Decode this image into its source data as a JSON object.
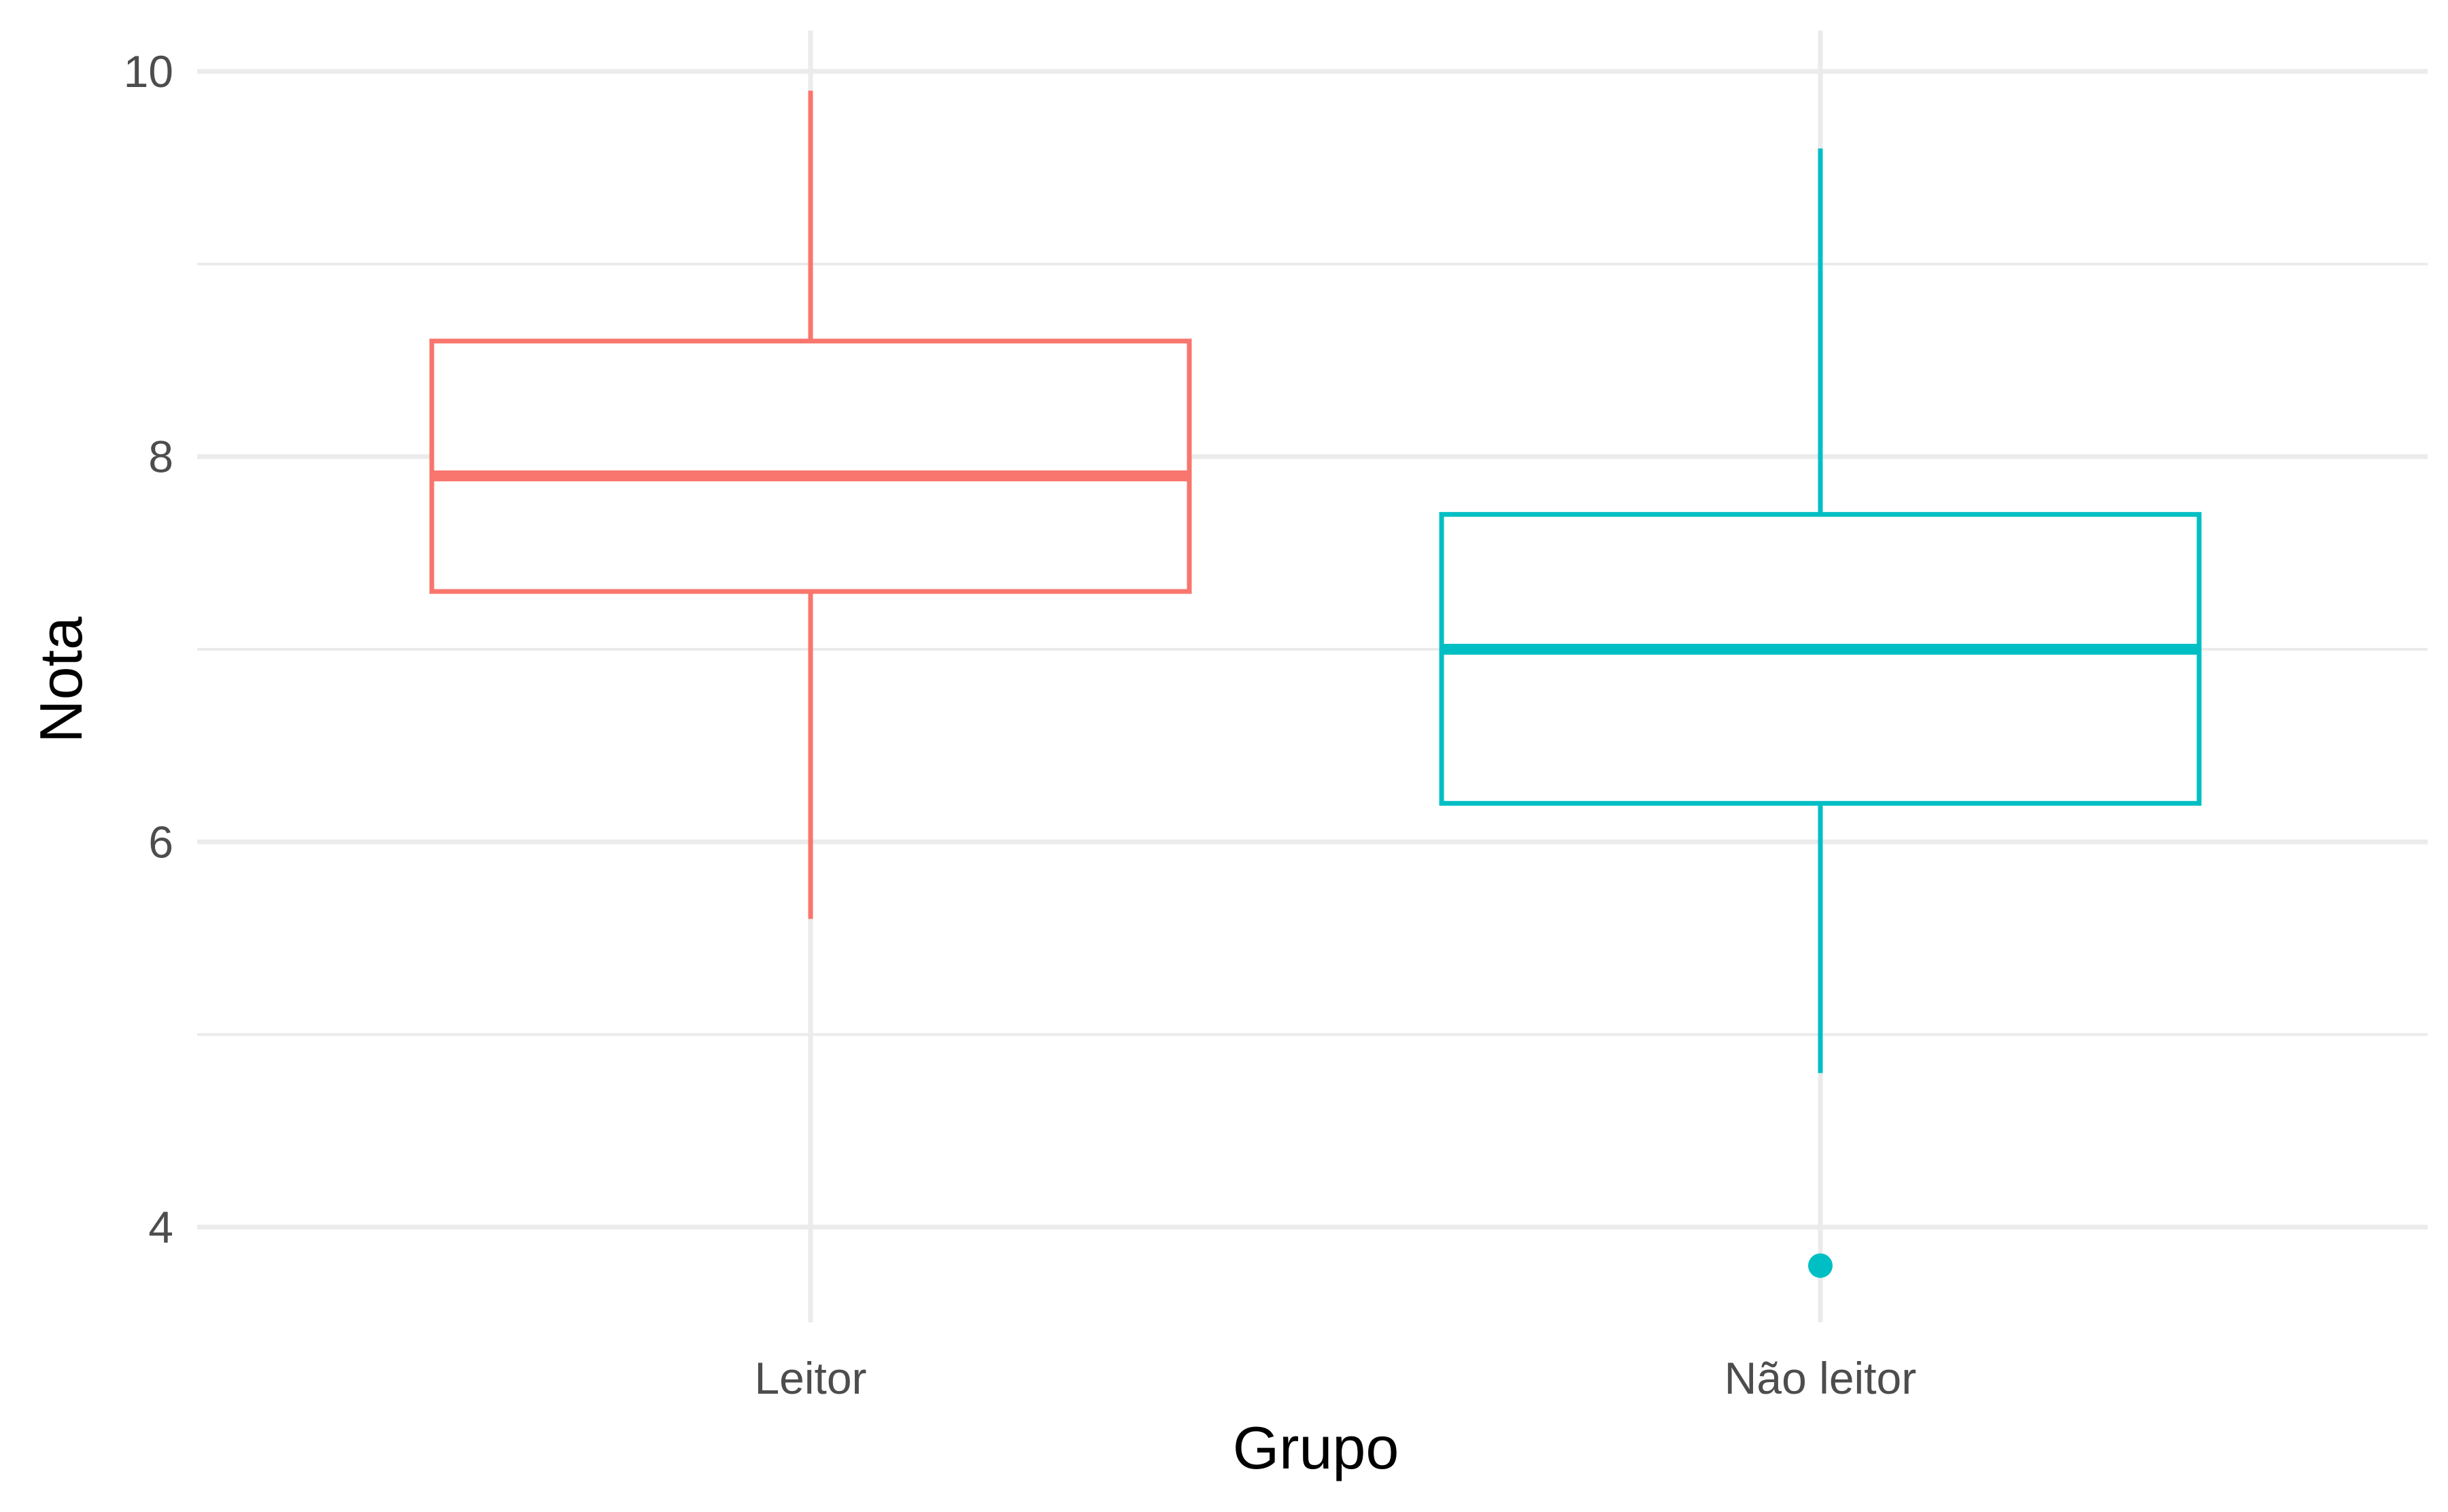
{
  "chart_data": {
    "type": "boxplot",
    "title": "",
    "xlabel": "Grupo",
    "ylabel": "Nota",
    "ylim": [
      3.5,
      10.2
    ],
    "y_major_ticks": [
      4,
      6,
      8,
      10
    ],
    "y_minor_ticks": [
      5,
      7,
      9
    ],
    "grid": true,
    "legend": "none",
    "categories": [
      "Leitor",
      "Não leitor"
    ],
    "series": [
      {
        "category": "Leitor",
        "color": "#F8766D",
        "min": 5.6,
        "q1": 7.3,
        "median": 7.9,
        "q3": 8.6,
        "max": 9.9,
        "outliers": []
      },
      {
        "category": "Não leitor",
        "color": "#00BFC4",
        "min": 4.8,
        "q1": 6.2,
        "median": 7.0,
        "q3": 7.7,
        "max": 9.6,
        "outliers": [
          3.8
        ]
      }
    ]
  }
}
